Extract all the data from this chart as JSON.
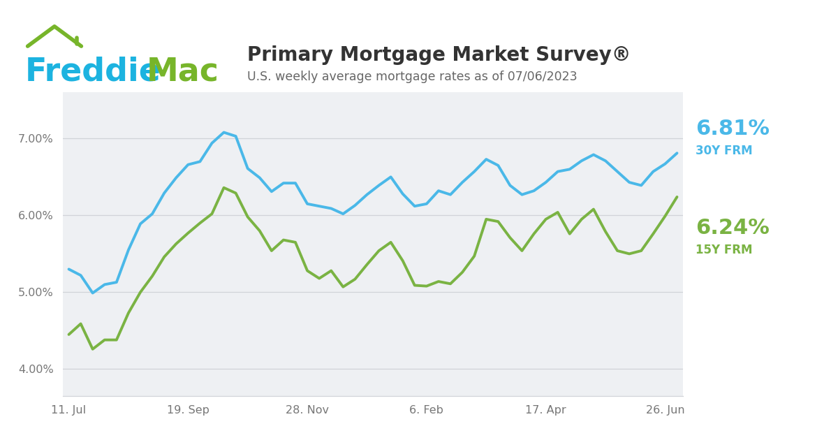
{
  "title": "Primary Mortgage Market Survey®",
  "subtitle": "U.S. weekly average mortgage rates as of 07/06/2023",
  "plot_bg_color": "#eef0f3",
  "line_30y_color": "#4ab8e8",
  "line_15y_color": "#7ab343",
  "label_30y": "6.81%",
  "label_30y_sub": "30Y FRM",
  "label_15y": "6.24%",
  "label_15y_sub": "15Y FRM",
  "freddie_blue": "#1cb3e0",
  "freddie_green": "#77b52a",
  "title_color": "#333333",
  "subtitle_color": "#666666",
  "x_tick_labels": [
    "11. Jul",
    "19. Sep",
    "28. Nov",
    "6. Feb",
    "17. Apr",
    "26. Jun"
  ],
  "y_ticks": [
    4.0,
    5.0,
    6.0,
    7.0
  ],
  "ylim": [
    3.65,
    7.6
  ],
  "x_tick_positions": [
    0,
    10,
    20,
    30,
    40,
    50
  ],
  "rate_30y": [
    5.3,
    5.22,
    4.99,
    5.1,
    5.13,
    5.55,
    5.89,
    6.02,
    6.29,
    6.49,
    6.66,
    6.7,
    6.94,
    7.08,
    7.03,
    6.61,
    6.49,
    6.31,
    6.42,
    6.42,
    6.15,
    6.12,
    6.09,
    6.02,
    6.13,
    6.27,
    6.39,
    6.5,
    6.28,
    6.12,
    6.15,
    6.32,
    6.27,
    6.43,
    6.57,
    6.73,
    6.65,
    6.39,
    6.27,
    6.32,
    6.43,
    6.57,
    6.6,
    6.71,
    6.79,
    6.71,
    6.57,
    6.43,
    6.39,
    6.57,
    6.67,
    6.81
  ],
  "rate_15y": [
    4.45,
    4.59,
    4.26,
    4.38,
    4.38,
    4.73,
    5.0,
    5.21,
    5.46,
    5.63,
    5.77,
    5.9,
    6.02,
    6.36,
    6.29,
    5.98,
    5.8,
    5.54,
    5.68,
    5.65,
    5.28,
    5.18,
    5.28,
    5.07,
    5.17,
    5.36,
    5.54,
    5.65,
    5.41,
    5.09,
    5.08,
    5.14,
    5.11,
    5.26,
    5.47,
    5.95,
    5.92,
    5.71,
    5.54,
    5.76,
    5.95,
    6.04,
    5.76,
    5.95,
    6.08,
    5.79,
    5.54,
    5.5,
    5.54,
    5.76,
    5.99,
    6.24
  ],
  "n_points": 52,
  "grid_color": "#d0d3d8",
  "tick_color": "#777777"
}
